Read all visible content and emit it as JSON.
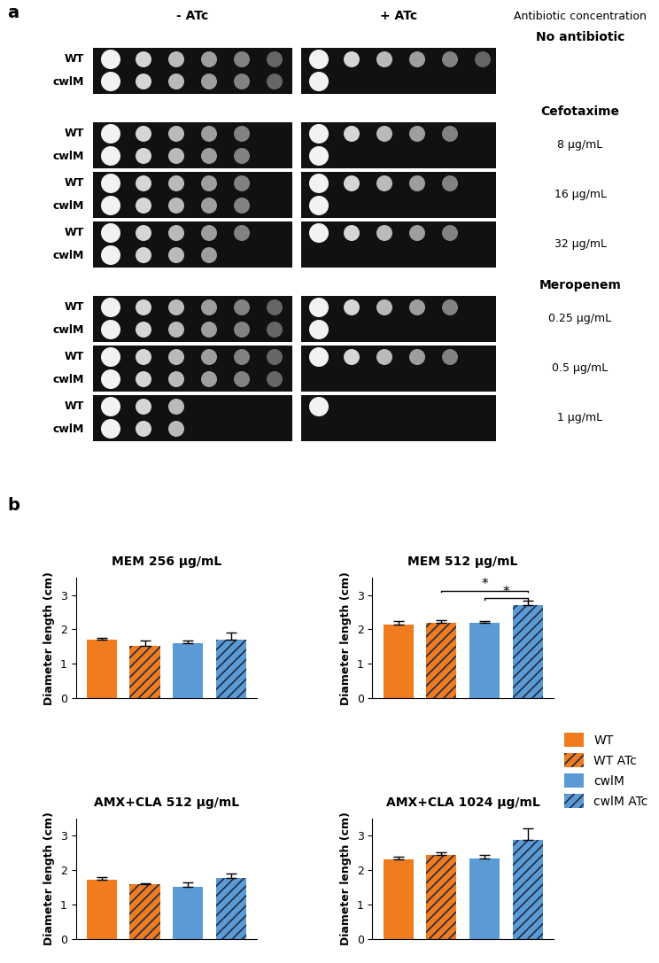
{
  "panel_a": {
    "label": "a",
    "columns": [
      "- ATc",
      "+ ATc"
    ],
    "corner_label": "Antibiotic concentration",
    "groups": [
      {
        "title": "No antibiotic",
        "blocks": [
          {
            "concentration": null,
            "rows": [
              {
                "strain": "WT",
                "growth": [
                  6,
                  6
                ]
              },
              {
                "strain": "cwlM",
                "growth": [
                  6,
                  1
                ]
              }
            ]
          }
        ]
      },
      {
        "title": "Cefotaxime",
        "blocks": [
          {
            "concentration": "8 μg/mL",
            "rows": [
              {
                "strain": "WT",
                "growth": [
                  5,
                  5
                ]
              },
              {
                "strain": "cwlM",
                "growth": [
                  5,
                  1
                ]
              }
            ]
          },
          {
            "concentration": "16 μg/mL",
            "rows": [
              {
                "strain": "WT",
                "growth": [
                  5,
                  5
                ]
              },
              {
                "strain": "cwlM",
                "growth": [
                  5,
                  1
                ]
              }
            ]
          },
          {
            "concentration": "32 μg/mL",
            "rows": [
              {
                "strain": "WT",
                "growth": [
                  5,
                  5
                ]
              },
              {
                "strain": "cwlM",
                "growth": [
                  4,
                  0
                ]
              }
            ]
          }
        ]
      },
      {
        "title": "Meropenem",
        "blocks": [
          {
            "concentration": "0.25 μg/mL",
            "rows": [
              {
                "strain": "WT",
                "growth": [
                  6,
                  5
                ]
              },
              {
                "strain": "cwlM",
                "growth": [
                  6,
                  1
                ]
              }
            ]
          },
          {
            "concentration": "0.5 μg/mL",
            "rows": [
              {
                "strain": "WT",
                "growth": [
                  6,
                  5
                ]
              },
              {
                "strain": "cwlM",
                "growth": [
                  6,
                  0
                ]
              }
            ]
          },
          {
            "concentration": "1 μg/mL",
            "rows": [
              {
                "strain": "WT",
                "growth": [
                  3,
                  1
                ]
              },
              {
                "strain": "cwlM",
                "growth": [
                  3,
                  0
                ]
              }
            ]
          }
        ]
      }
    ]
  },
  "panel_b_label": "b",
  "chart_data": [
    {
      "type": "bar",
      "title": "MEM 256 μg/mL",
      "y_label": "Diameter length (cm)",
      "categories": [
        null,
        null,
        null,
        null
      ],
      "tick_labels": "y",
      "legend": "center right",
      "ylim": [
        0,
        3.5
      ],
      "yticks": [
        0,
        1,
        2,
        3
      ],
      "series": [
        {
          "name": "WT",
          "color": "#f07c20",
          "values": [
            1.71,
            null,
            null,
            null
          ],
          "errors": [
            0.04,
            null,
            null,
            null
          ]
        },
        {
          "name": "WT ATc",
          "color": "#f07c20",
          "values": [
            null,
            1.53,
            null,
            null
          ],
          "errors": [
            null,
            0.15,
            null,
            null
          ]
        },
        {
          "name": "cwlM",
          "color": "#5b9bd5",
          "values": [
            null,
            null,
            1.59,
            null
          ],
          "errors": [
            null,
            null,
            0.09,
            null
          ]
        },
        {
          "name": "cwlM ATc",
          "color": "#5b9bd5",
          "values": [
            null,
            null,
            null,
            1.7
          ],
          "errors": [
            null,
            null,
            null,
            0.22
          ]
        }
      ]
    },
    {
      "type": "bar",
      "title": "MEM 512 μg/mL",
      "y_label": "Diameter length (cm)",
      "categories": [
        null,
        null,
        null,
        null
      ],
      "tick_labels": "y",
      "ylim": [
        0,
        3.5
      ],
      "yticks": [
        0,
        1,
        2,
        3
      ],
      "series": [
        {
          "name": "WT",
          "color": "#f07c20",
          "values": [
            2.15,
            null,
            null,
            null
          ],
          "errors": [
            0.1,
            null,
            null,
            null
          ]
        },
        {
          "name": "WT ATc",
          "color": "#f07c20",
          "values": [
            null,
            2.18,
            null,
            null
          ],
          "errors": [
            null,
            0.1,
            null,
            null
          ]
        },
        {
          "name": "cwlM",
          "color": "#5b9bd5",
          "values": [
            null,
            null,
            2.19,
            null
          ],
          "errors": [
            null,
            null,
            0.05,
            null
          ]
        },
        {
          "name": "cwlM ATc",
          "color": "#5b9bd5",
          "values": [
            null,
            null,
            null,
            2.7
          ],
          "errors": [
            null,
            null,
            null,
            0.13
          ]
        }
      ],
      "annotations": [
        {
          "text": "*",
          "between": [
            "cwlM",
            "cwlM ATc"
          ]
        },
        {
          "text": "*",
          "between": [
            "WT ATc",
            "cwlM ATc"
          ]
        }
      ]
    },
    {
      "type": "bar",
      "title": "AMX+CLA 512 μg/mL",
      "y_label": "Diameter length (cm)",
      "categories": [
        null,
        null,
        null,
        null
      ],
      "tick_labels": "y",
      "ylim": [
        0,
        3.5
      ],
      "yticks": [
        0,
        1,
        2,
        3
      ],
      "series": [
        {
          "name": "WT",
          "color": "#f07c20",
          "values": [
            1.72,
            null,
            null,
            null
          ],
          "errors": [
            0.08,
            null,
            null,
            null
          ]
        },
        {
          "name": "WT ATc",
          "color": "#f07c20",
          "values": [
            null,
            1.58,
            null,
            null
          ],
          "errors": [
            null,
            0.05,
            null,
            null
          ]
        },
        {
          "name": "cwlM",
          "color": "#5b9bd5",
          "values": [
            null,
            null,
            1.52,
            null
          ],
          "errors": [
            null,
            null,
            0.13,
            null
          ]
        },
        {
          "name": "cwlM ATc",
          "color": "#5b9bd5",
          "values": [
            null,
            null,
            null,
            1.77
          ],
          "errors": [
            null,
            null,
            null,
            0.12
          ]
        }
      ]
    },
    {
      "type": "bar",
      "title": "AMX+CLA 1024 μg/mL",
      "y_label": "Diameter length (cm)",
      "categories": [
        null,
        null,
        null,
        null
      ],
      "tick_labels": "y",
      "ylim": [
        0,
        3.5
      ],
      "yticks": [
        0,
        1,
        2,
        3
      ],
      "series": [
        {
          "name": "WT",
          "color": "#f07c20",
          "values": [
            2.31,
            null,
            null,
            null
          ],
          "errors": [
            0.08,
            null,
            null,
            null
          ]
        },
        {
          "name": "WT ATc",
          "color": "#f07c20",
          "values": [
            null,
            2.43,
            null,
            null
          ],
          "errors": [
            null,
            0.1,
            null,
            null
          ]
        },
        {
          "name": "cwlM",
          "color": "#5b9bd5",
          "values": [
            null,
            null,
            2.35,
            null
          ],
          "errors": [
            null,
            null,
            0.08,
            null
          ]
        },
        {
          "name": "cwlM ATc",
          "color": "#5b9bd5",
          "values": [
            null,
            null,
            null,
            2.87
          ],
          "errors": [
            null,
            null,
            null,
            0.35
          ]
        }
      ]
    }
  ]
}
